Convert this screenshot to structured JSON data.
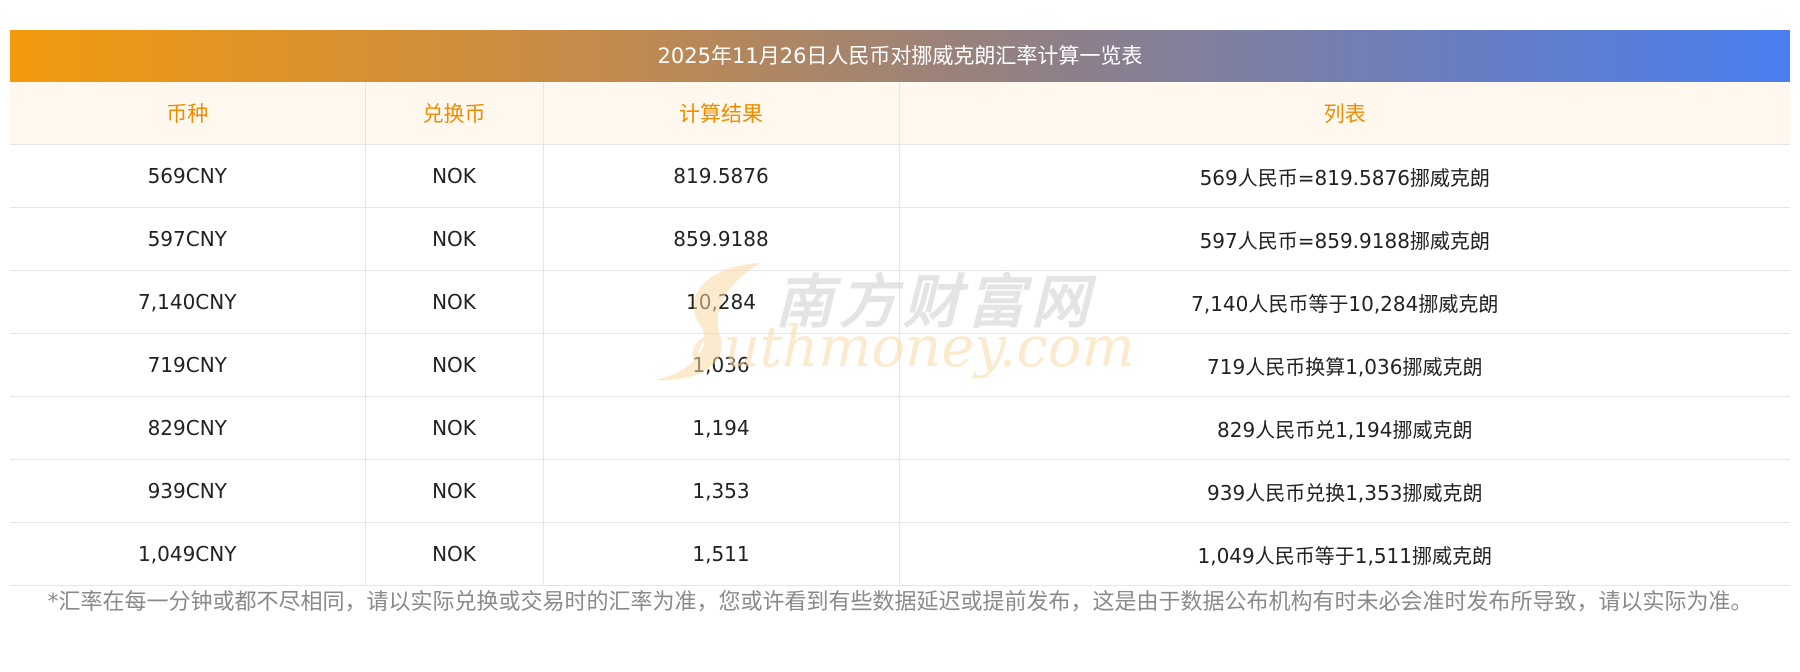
{
  "title": "2025年11月26日人民币对挪威克朗汇率计算一览表",
  "headers": [
    "币种",
    "兑换币",
    "计算结果",
    "列表"
  ],
  "rows": [
    {
      "currency": "569CNY",
      "target": "NOK",
      "result": "819.5876",
      "list": "569人民币=819.5876挪威克朗"
    },
    {
      "currency": "597CNY",
      "target": "NOK",
      "result": "859.9188",
      "list": "597人民币=859.9188挪威克朗"
    },
    {
      "currency": "7,140CNY",
      "target": "NOK",
      "result": "10,284",
      "list": "7,140人民币等于10,284挪威克朗"
    },
    {
      "currency": "719CNY",
      "target": "NOK",
      "result": "1,036",
      "list": "719人民币换算1,036挪威克朗"
    },
    {
      "currency": "829CNY",
      "target": "NOK",
      "result": "1,194",
      "list": "829人民币兑1,194挪威克朗"
    },
    {
      "currency": "939CNY",
      "target": "NOK",
      "result": "1,353",
      "list": "939人民币兑换1,353挪威克朗"
    },
    {
      "currency": "1,049CNY",
      "target": "NOK",
      "result": "1,511",
      "list": "1,049人民币等于1,511挪威克朗"
    }
  ],
  "watermark": {
    "cn": "南方财富网",
    "en": "outhmoney.com"
  },
  "footnote": "*汇率在每一分钟或都不尽相同，请以实际兑换或交易时的汇率为准，您或许看到有些数据延迟或提前发布，这是由于数据公布机构有时未必会准时发布所导致，请以实际为准。",
  "colors": {
    "header_text": "#f08c00",
    "header_bg": "#fff8ef",
    "gradient_start": "#f39a0e",
    "gradient_end": "#4a7ef0"
  }
}
